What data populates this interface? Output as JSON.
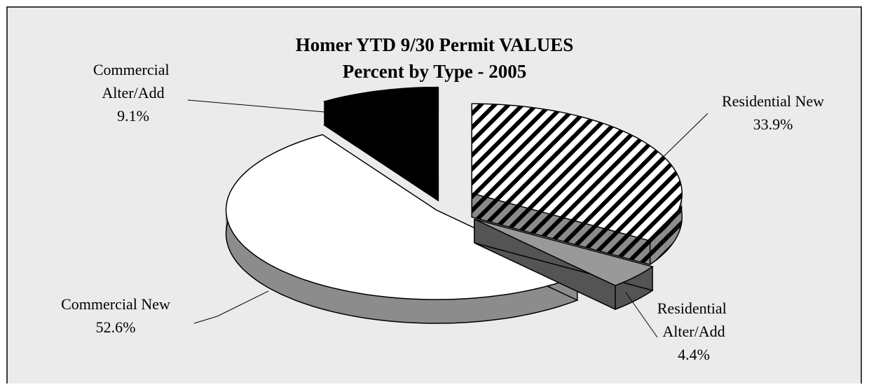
{
  "chart_data": {
    "type": "pie",
    "title": [
      "Homer YTD 9/30 Permit VALUES",
      "Percent by Type - 2005"
    ],
    "categories": [
      "Residential New",
      "Residential Alter/Add",
      "Commercial New",
      "Commercial Alter/Add"
    ],
    "values": [
      33.9,
      4.4,
      52.6,
      9.1
    ],
    "value_labels": [
      "33.9%",
      "4.4%",
      "52.6%",
      "9.1%"
    ],
    "colors": [
      "#ffffff",
      "#999999",
      "#ffffff",
      "#000000"
    ],
    "patterns": [
      "diagonal-stripes",
      null,
      null,
      null
    ],
    "three_d": true,
    "exploded": true
  }
}
